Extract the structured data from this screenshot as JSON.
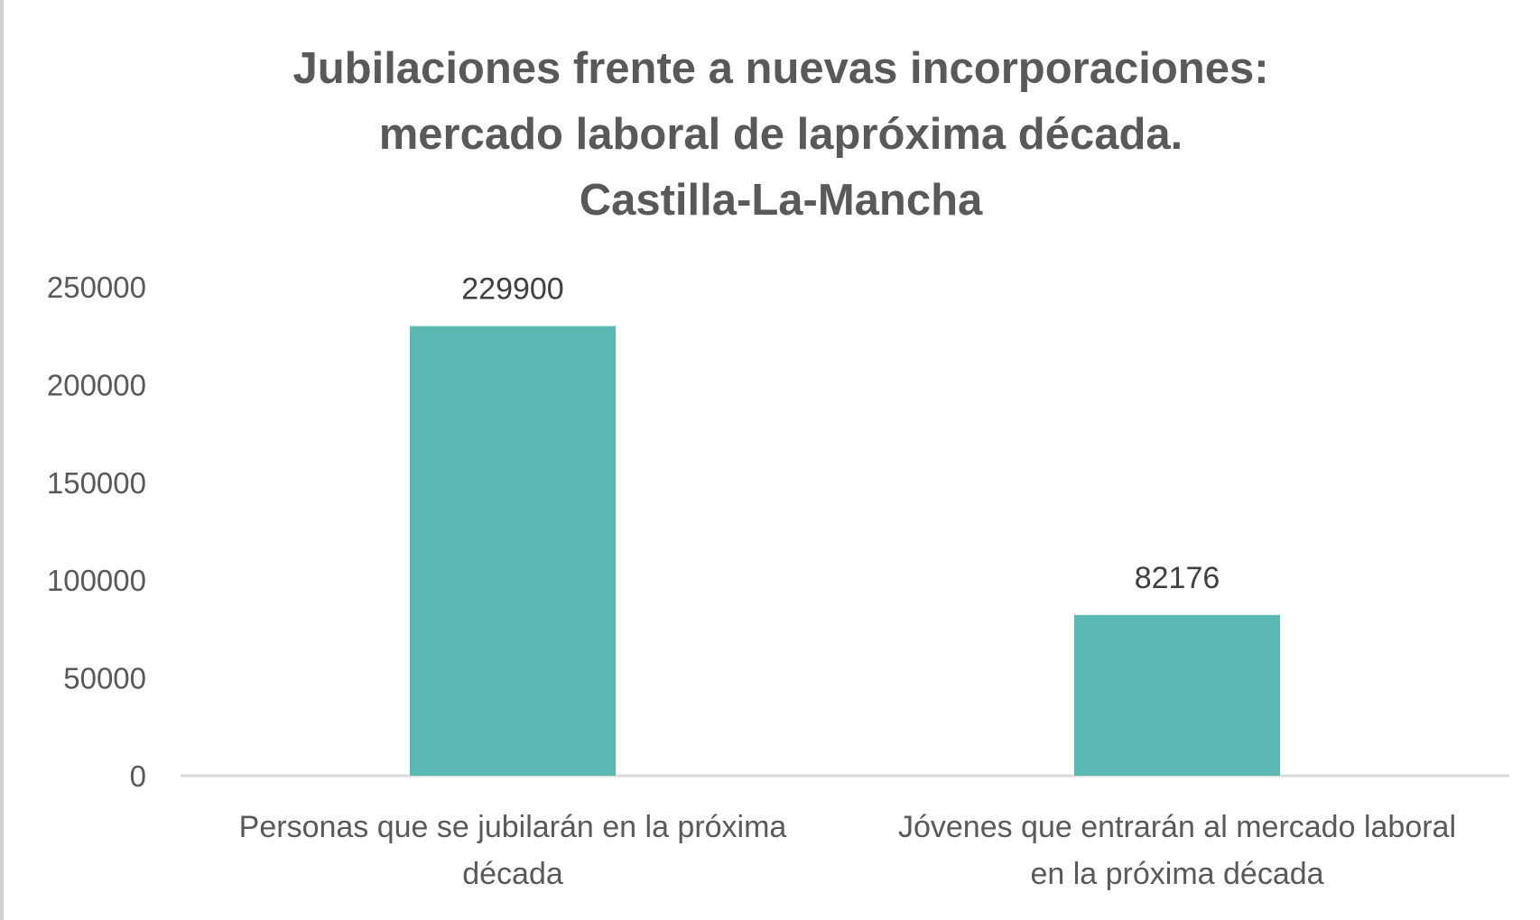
{
  "chart_data": {
    "type": "bar",
    "title": [
      "Jubilaciones frente a nuevas incorporaciones:",
      "mercado laboral de lapróxima década.",
      "Castilla-La-Mancha"
    ],
    "categories": [
      [
        "Personas que se jubilarán en la próxima",
        "década"
      ],
      [
        "Jóvenes que entrarán al mercado laboral",
        "en la próxima década"
      ]
    ],
    "values": [
      229900,
      82176
    ],
    "data_labels": [
      "229900",
      "82176"
    ],
    "ylim": [
      0,
      250000
    ],
    "yticks": [
      "0",
      "50000",
      "100000",
      "150000",
      "200000",
      "250000"
    ],
    "grid": false,
    "legend": "none",
    "bar_color": "#5BB8B3",
    "axis_color": "#D9D9D9"
  }
}
